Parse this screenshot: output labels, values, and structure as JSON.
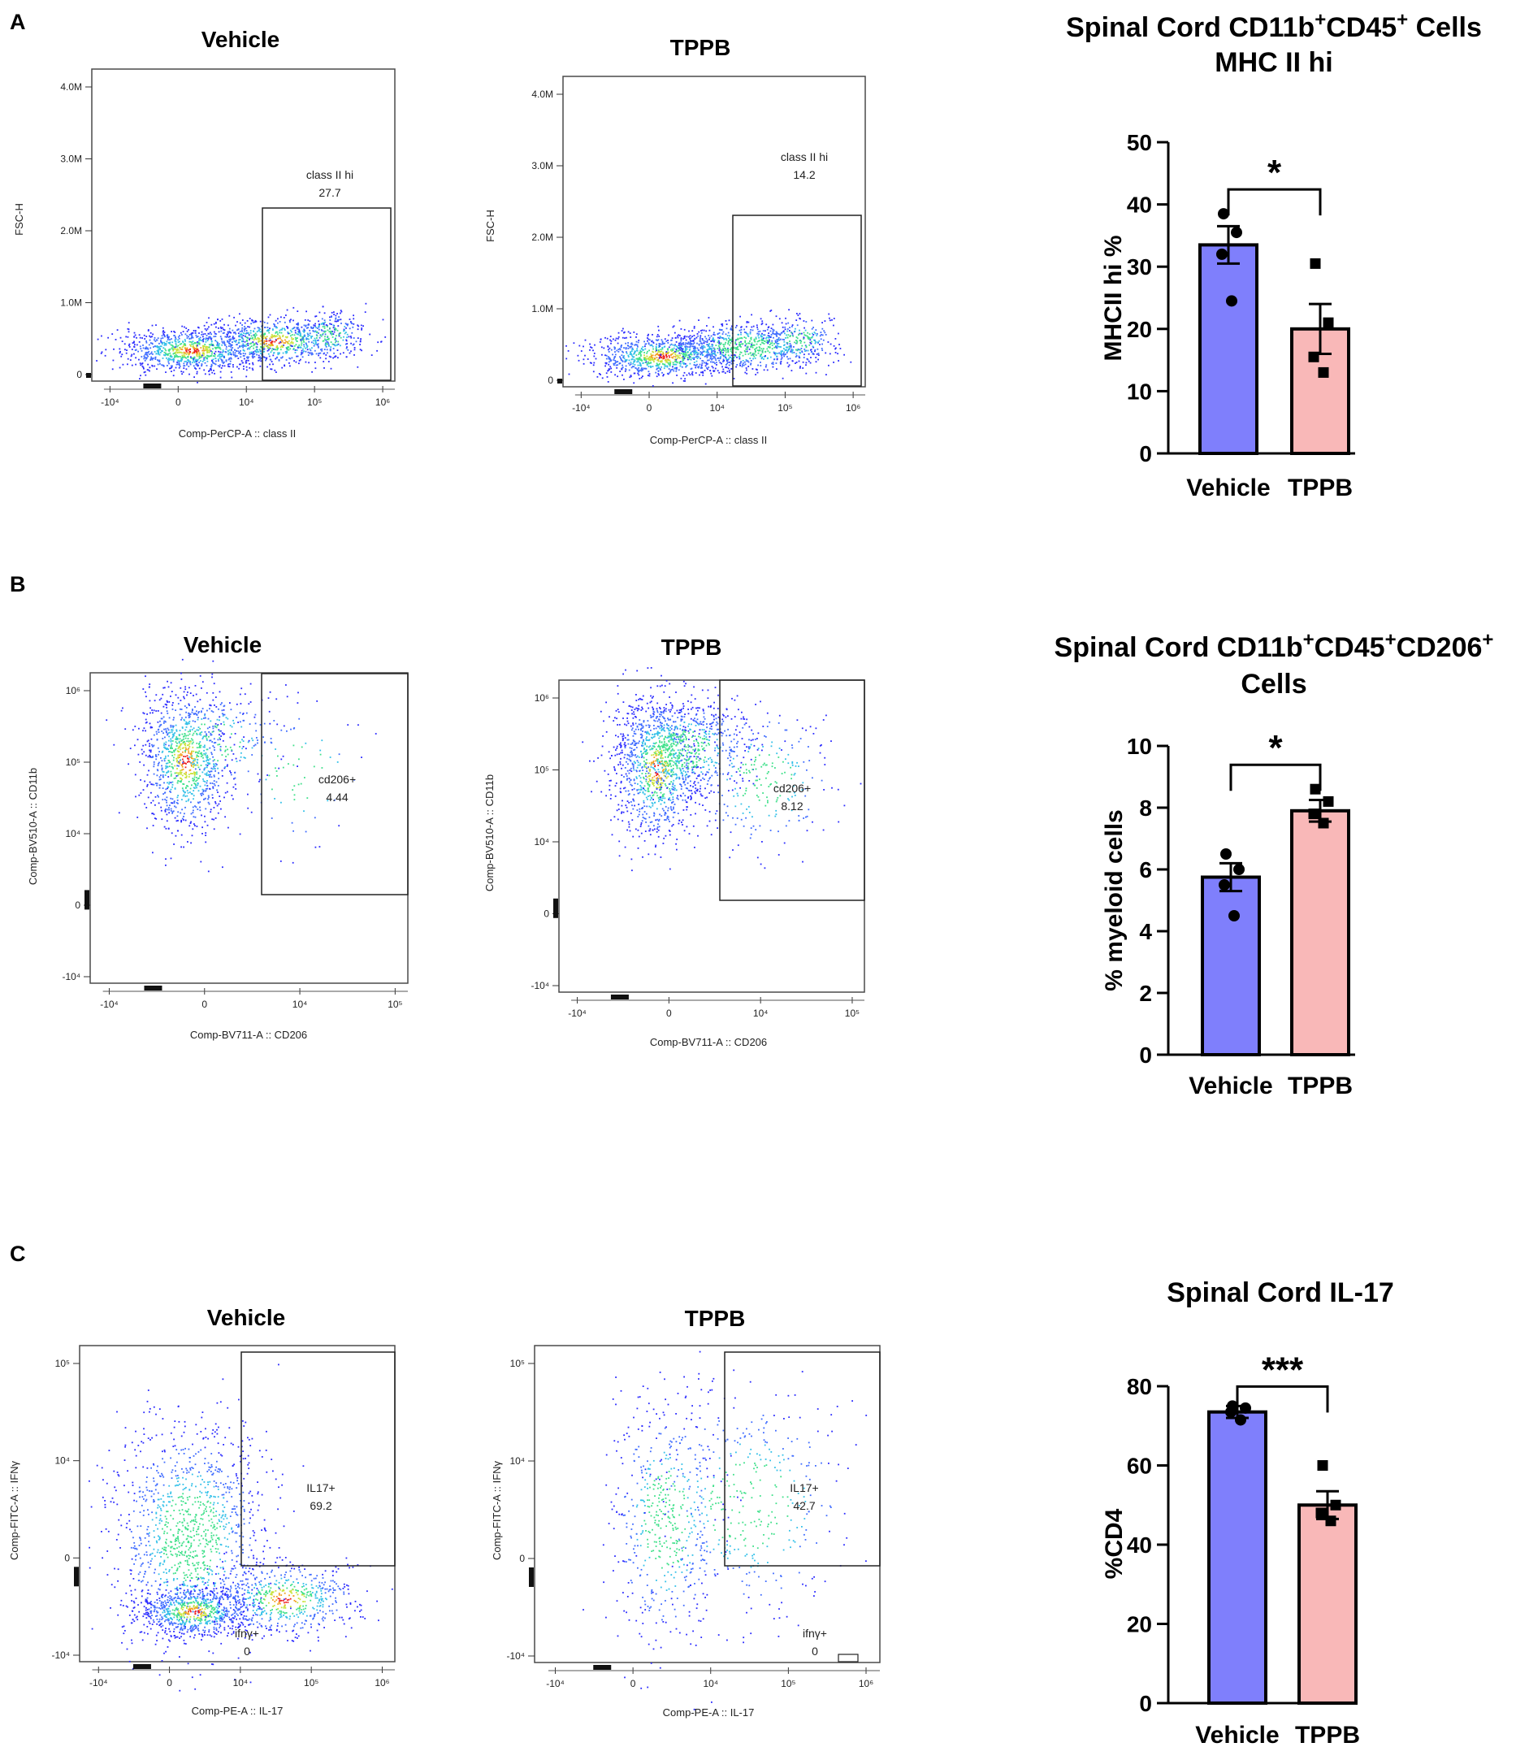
{
  "panels": [
    {
      "letter": "A",
      "flow": [
        {
          "title": "Vehicle",
          "ylabel": "FSC-H",
          "xlabel": "Comp-PerCP-A :: class II",
          "xticks": [
            "-10⁴",
            "0",
            "10⁴",
            "10⁵",
            "10⁶"
          ],
          "yticks": [
            "0",
            "1.0M",
            "2.0M",
            "3.0M",
            "4.0M"
          ],
          "gate_name": "class II hi",
          "gate_value": "27.7"
        },
        {
          "title": "TPPB",
          "ylabel": "FSC-H",
          "xlabel": "Comp-PerCP-A :: class II",
          "xticks": [
            "-10⁴",
            "0",
            "10⁴",
            "10⁵",
            "10⁶"
          ],
          "yticks": [
            "0",
            "1.0M",
            "2.0M",
            "3.0M",
            "4.0M"
          ],
          "gate_name": "class II hi",
          "gate_value": "14.2"
        }
      ]
    },
    {
      "letter": "B",
      "flow": [
        {
          "title": "Vehicle",
          "ylabel": "Comp-BV510-A :: CD11b",
          "xlabel": "Comp-BV711-A :: CD206",
          "xticks": [
            "-10⁴",
            "0",
            "10⁴",
            "10⁵"
          ],
          "yticks": [
            "-10⁴",
            "0",
            "10⁴",
            "10⁵",
            "10⁶"
          ],
          "gate_name": "cd206+",
          "gate_value": "4.44"
        },
        {
          "title": "TPPB",
          "ylabel": "Comp-BV510-A :: CD11b",
          "xlabel": "Comp-BV711-A :: CD206",
          "xticks": [
            "-10⁴",
            "0",
            "10⁴",
            "10⁵"
          ],
          "yticks": [
            "-10⁴",
            "0",
            "10⁴",
            "10⁵",
            "10⁶"
          ],
          "gate_name": "cd206+",
          "gate_value": "8.12"
        }
      ]
    },
    {
      "letter": "C",
      "flow": [
        {
          "title": "Vehicle",
          "ylabel": "Comp-FITC-A :: IFNγ",
          "xlabel": "Comp-PE-A :: IL-17",
          "xticks": [
            "-10⁴",
            "0",
            "10⁴",
            "10⁵",
            "10⁶"
          ],
          "yticks": [
            "-10⁴",
            "0",
            "10⁴",
            "10⁵"
          ],
          "gate_name": "IL17+",
          "gate_value": "69.2",
          "gate2_name": "ifnγ+",
          "gate2_value": "0"
        },
        {
          "title": "TPPB",
          "ylabel": "Comp-FITC-A :: IFNγ",
          "xlabel": "Comp-PE-A :: IL-17",
          "xticks": [
            "-10⁴",
            "0",
            "10⁴",
            "10⁵",
            "10⁶"
          ],
          "yticks": [
            "-10⁴",
            "0",
            "10⁴",
            "10⁵"
          ],
          "gate_name": "IL17+",
          "gate_value": "42.7",
          "gate2_name": "ifnγ+",
          "gate2_value": "0"
        }
      ]
    }
  ],
  "colors": {
    "vehicle_bar": "#7f7ffc",
    "tppb_bar": "#f9b8b8",
    "axis": "#000000",
    "frame": "#4a4a4a"
  },
  "chart_data": [
    {
      "type": "bar",
      "panel": "A",
      "title_lines": [
        [
          {
            "t": "Spinal Cord CD11b"
          },
          {
            "t": "+",
            "sup": true
          },
          {
            "t": "CD45"
          },
          {
            "t": "+",
            "sup": true
          },
          {
            "t": "  Cells"
          }
        ],
        [
          {
            "t": "MHC II hi"
          }
        ]
      ],
      "categories": [
        "Vehicle",
        "TPPB"
      ],
      "values": [
        33.5,
        20.0
      ],
      "errors": [
        3.0,
        4.0
      ],
      "points": [
        [
          38.5,
          35.5,
          32.0,
          24.5
        ],
        [
          30.5,
          21.0,
          15.5,
          13.0
        ]
      ],
      "ylabel": "MHCII hi %",
      "ylim": [
        0,
        50
      ],
      "yticks": [
        0,
        10,
        20,
        30,
        40,
        50
      ],
      "significance": "*"
    },
    {
      "type": "bar",
      "panel": "B",
      "title_lines": [
        [
          {
            "t": "Spinal Cord CD11b"
          },
          {
            "t": "+",
            "sup": true
          },
          {
            "t": "CD45"
          },
          {
            "t": "+",
            "sup": true
          },
          {
            "t": "CD206"
          },
          {
            "t": "+",
            "sup": true
          }
        ],
        [
          {
            "t": "Cells"
          }
        ]
      ],
      "categories": [
        "Vehicle",
        "TPPB"
      ],
      "values": [
        5.75,
        7.9
      ],
      "errors": [
        0.45,
        0.35
      ],
      "points": [
        [
          6.5,
          6.0,
          5.5,
          4.5
        ],
        [
          8.6,
          8.2,
          7.8,
          7.5
        ]
      ],
      "ylabel": "% myeloid cells",
      "ylim": [
        0,
        10
      ],
      "yticks": [
        0,
        2,
        4,
        6,
        8,
        10
      ],
      "significance": "*"
    },
    {
      "type": "bar",
      "panel": "C",
      "title_lines": [
        [
          {
            "t": "Spinal Cord IL-17"
          }
        ]
      ],
      "categories": [
        "Vehicle",
        "TPPB"
      ],
      "values": [
        73.5,
        50.0
      ],
      "errors": [
        1.5,
        3.5
      ],
      "points": [
        [
          75.0,
          74.5,
          73.5,
          71.5
        ],
        [
          60.0,
          50.0,
          48.0,
          46.0
        ]
      ],
      "ylabel": "%CD4",
      "ylim": [
        0,
        80
      ],
      "yticks": [
        0,
        20,
        40,
        60,
        80
      ],
      "significance": "***"
    }
  ]
}
